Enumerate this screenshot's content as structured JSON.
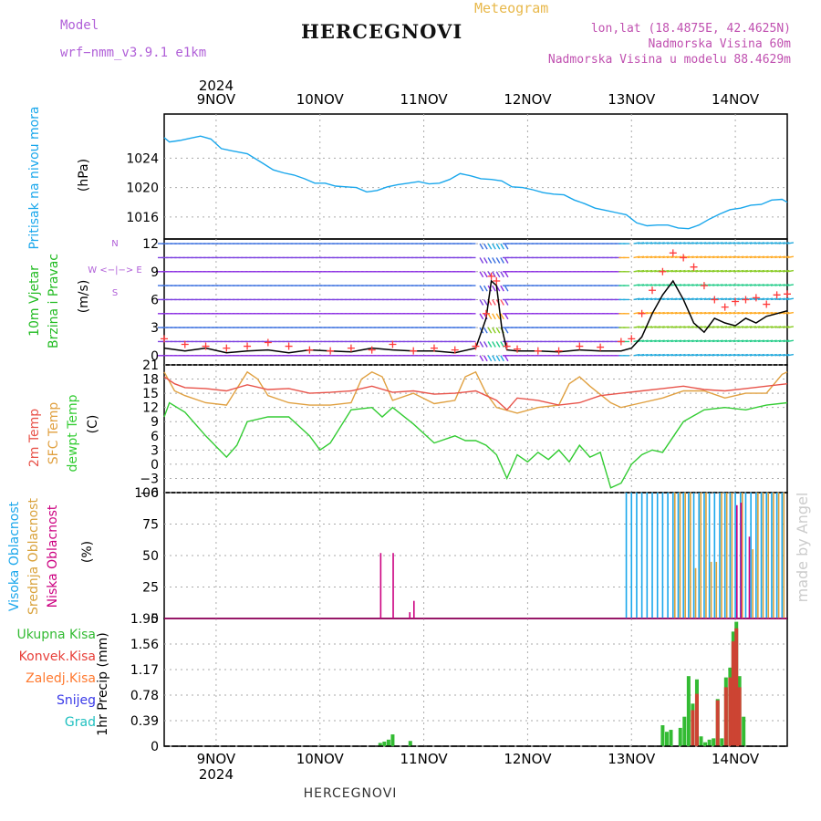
{
  "header": {
    "model_label": "Model",
    "model_value": "wrf−nmm_v3.9.1  e1km",
    "meteogram_label": "Meteogram",
    "station": "HERCEGNOVI",
    "coords": "lon,lat (18.4875E, 42.4625N)",
    "elevation": "Nadmorska Visina 60m",
    "model_elevation": "Nadmorska Visina u modelu 88.4629m"
  },
  "footer": {
    "station": "HERCEGNOVI",
    "watermark": "made by Angel"
  },
  "colors": {
    "pressure": "#1aa7ec",
    "wind_black": "#000000",
    "wind_red": "#ff3b3b",
    "temp_2m": "#e8534a",
    "temp_sfc": "#e0a040",
    "dewpoint": "#33cc33",
    "cloud_high": "#1aa7ec",
    "cloud_mid": "#d9a23c",
    "cloud_low": "#cc0080",
    "precip_total": "#33bb33",
    "precip_conv": "#cc4433",
    "label_pressure": "#1aa7ec",
    "label_wind": "#22bb22",
    "label_wind2": "#b05fd8"
  },
  "chart_data": [
    {
      "type": "line",
      "panel": "pressure",
      "ylabel": "Pritisak na nivou mora",
      "unit": "(hPa)",
      "yticks": [
        "1016",
        "1020",
        "1024"
      ],
      "ylim": [
        1013,
        1030
      ],
      "x_day_labels": [
        "9NOV",
        "10NOV",
        "11NOV",
        "12NOV",
        "13NOV",
        "14NOV"
      ],
      "x_year_label": "2024",
      "x_start_day": 8.5,
      "x_end_day": 14.5,
      "series": [
        {
          "x": [
            8.5,
            8.55,
            8.65,
            8.75,
            8.85,
            8.95,
            9.05,
            9.15,
            9.3,
            9.45,
            9.55,
            9.65,
            9.75,
            9.85,
            9.95,
            10.05,
            10.15,
            10.25,
            10.35,
            10.45,
            10.55,
            10.65,
            10.75,
            10.85,
            10.95,
            11.05,
            11.15,
            11.25,
            11.35,
            11.45,
            11.55,
            11.65,
            11.75,
            11.85,
            11.95,
            12.05,
            12.15,
            12.25,
            12.35,
            12.45,
            12.55,
            12.65,
            12.75,
            12.85,
            12.95,
            13.05,
            13.15,
            13.25,
            13.35,
            13.45,
            13.55,
            13.65,
            13.75,
            13.85,
            13.95,
            14.05,
            14.15,
            14.25,
            14.35,
            14.45,
            14.5
          ],
          "y": [
            1026.8,
            1026.2,
            1026.4,
            1026.7,
            1027.0,
            1026.6,
            1025.3,
            1025.0,
            1024.6,
            1023.3,
            1022.4,
            1022.0,
            1021.7,
            1021.2,
            1020.6,
            1020.6,
            1020.2,
            1020.1,
            1020.0,
            1019.4,
            1019.6,
            1020.1,
            1020.4,
            1020.6,
            1020.8,
            1020.5,
            1020.6,
            1021.1,
            1021.9,
            1021.6,
            1021.2,
            1021.1,
            1020.9,
            1020.1,
            1020.0,
            1019.7,
            1019.3,
            1019.1,
            1019.0,
            1018.3,
            1017.8,
            1017.2,
            1016.9,
            1016.6,
            1016.3,
            1015.2,
            1014.8,
            1014.9,
            1014.9,
            1014.5,
            1014.4,
            1014.9,
            1015.7,
            1016.4,
            1017.0,
            1017.2,
            1017.6,
            1017.7,
            1018.3,
            1018.4,
            1018.0
          ]
        }
      ]
    },
    {
      "type": "line",
      "panel": "wind",
      "ylabel": "10m Vjetar",
      "ylabel2": "Brzina i Pravac",
      "unit": "(m/s)",
      "compass": "W <−|−> E",
      "compass_vertical": "N",
      "compass_vertical_bottom": "S",
      "yticks": [
        "0",
        "3",
        "6",
        "9",
        "12"
      ],
      "ylim": [
        -1,
        12.5
      ],
      "series": [
        {
          "name": "speed",
          "x": [
            8.5,
            8.7,
            8.9,
            9.1,
            9.3,
            9.5,
            9.7,
            9.9,
            10.1,
            10.3,
            10.5,
            10.7,
            10.9,
            11.1,
            11.3,
            11.5,
            11.6,
            11.65,
            11.7,
            11.75,
            11.8,
            11.9,
            12.1,
            12.3,
            12.5,
            12.7,
            12.9,
            13.0,
            13.1,
            13.2,
            13.3,
            13.4,
            13.5,
            13.6,
            13.7,
            13.8,
            13.9,
            14.0,
            14.1,
            14.2,
            14.3,
            14.4,
            14.5
          ],
          "y": [
            0.8,
            0.5,
            0.8,
            0.3,
            0.5,
            0.6,
            0.3,
            0.6,
            0.5,
            0.4,
            0.8,
            0.6,
            0.5,
            0.5,
            0.3,
            0.8,
            4.0,
            8.0,
            7.5,
            3.0,
            0.6,
            0.5,
            0.5,
            0.4,
            0.6,
            0.5,
            0.5,
            0.8,
            2.0,
            4.5,
            6.5,
            8.0,
            6.0,
            3.5,
            2.5,
            4.0,
            3.5,
            3.2,
            4.0,
            3.5,
            4.2,
            4.5,
            4.8
          ]
        },
        {
          "name": "gust",
          "x": [
            8.5,
            8.7,
            8.9,
            9.1,
            9.3,
            9.5,
            9.7,
            9.9,
            10.1,
            10.3,
            10.5,
            10.7,
            10.9,
            11.1,
            11.3,
            11.5,
            11.6,
            11.65,
            11.7,
            11.8,
            11.9,
            12.1,
            12.3,
            12.5,
            12.7,
            12.9,
            13.0,
            13.1,
            13.2,
            13.3,
            13.4,
            13.5,
            13.6,
            13.7,
            13.8,
            13.9,
            14.0,
            14.1,
            14.2,
            14.3,
            14.4,
            14.5
          ],
          "y": [
            1.8,
            1.2,
            1.0,
            0.8,
            1.0,
            1.4,
            1.0,
            0.6,
            0.5,
            0.8,
            0.6,
            1.2,
            0.5,
            0.8,
            0.6,
            1.0,
            4.5,
            8.5,
            8.0,
            1.0,
            0.7,
            0.5,
            0.5,
            1.0,
            0.9,
            1.5,
            1.8,
            4.5,
            7.0,
            9.0,
            11.0,
            10.5,
            9.5,
            7.5,
            6.0,
            5.2,
            5.8,
            6.0,
            6.2,
            5.5,
            6.5,
            6.6
          ]
        }
      ]
    },
    {
      "type": "line",
      "panel": "temperature",
      "ylabel": "2m Temp",
      "ylabel2": "SFC Temp",
      "ylabel3": "dewpt Temp",
      "unit": "(C)",
      "yticks": [
        "−6",
        "−3",
        "0",
        "3",
        "6",
        "9",
        "12",
        "15",
        "18",
        "21"
      ],
      "ylim": [
        -6,
        21
      ],
      "series": [
        {
          "name": "2m Temp",
          "x": [
            8.5,
            8.6,
            8.7,
            8.9,
            9.1,
            9.3,
            9.5,
            9.7,
            9.9,
            10.1,
            10.3,
            10.5,
            10.7,
            10.9,
            11.1,
            11.3,
            11.5,
            11.7,
            11.8,
            11.9,
            12.1,
            12.3,
            12.5,
            12.7,
            12.9,
            13.1,
            13.3,
            13.5,
            13.7,
            13.9,
            14.1,
            14.3,
            14.5
          ],
          "y": [
            18.5,
            17.0,
            16.2,
            16.0,
            15.5,
            16.8,
            15.8,
            16.0,
            15.0,
            15.2,
            15.5,
            16.5,
            15.2,
            15.5,
            14.8,
            15.0,
            15.5,
            13.5,
            11.5,
            14.0,
            13.5,
            12.5,
            13.0,
            14.5,
            15.0,
            15.5,
            16.0,
            16.5,
            15.8,
            15.5,
            16.0,
            16.5,
            17.0
          ]
        },
        {
          "name": "SFC Temp",
          "x": [
            8.5,
            8.6,
            8.7,
            8.9,
            9.1,
            9.2,
            9.3,
            9.4,
            9.5,
            9.7,
            9.9,
            10.1,
            10.3,
            10.4,
            10.5,
            10.6,
            10.7,
            10.9,
            11.1,
            11.3,
            11.4,
            11.5,
            11.6,
            11.7,
            11.9,
            12.1,
            12.3,
            12.4,
            12.5,
            12.6,
            12.8,
            12.9,
            13.1,
            13.3,
            13.5,
            13.7,
            13.9,
            14.1,
            14.3,
            14.45,
            14.5
          ],
          "y": [
            19.5,
            15.5,
            14.5,
            13.0,
            12.5,
            16.0,
            19.5,
            18.0,
            14.5,
            13.0,
            12.5,
            12.5,
            13.0,
            18.0,
            19.5,
            18.5,
            13.5,
            15.0,
            12.8,
            13.5,
            18.5,
            19.5,
            15.0,
            12.0,
            10.8,
            12.0,
            12.5,
            17.0,
            18.5,
            16.5,
            13.0,
            12.0,
            13.0,
            14.0,
            15.5,
            15.5,
            14.0,
            15.0,
            15.0,
            19.0,
            19.5
          ]
        },
        {
          "name": "dewpt Temp",
          "x": [
            8.5,
            8.55,
            8.7,
            8.9,
            9.1,
            9.2,
            9.3,
            9.5,
            9.7,
            9.8,
            9.9,
            10.0,
            10.1,
            10.3,
            10.5,
            10.6,
            10.7,
            10.9,
            11.1,
            11.3,
            11.4,
            11.5,
            11.6,
            11.7,
            11.8,
            11.9,
            12.0,
            12.1,
            12.2,
            12.3,
            12.4,
            12.5,
            12.6,
            12.7,
            12.8,
            12.9,
            13.0,
            13.1,
            13.2,
            13.3,
            13.5,
            13.7,
            13.9,
            14.1,
            14.3,
            14.5
          ],
          "y": [
            10.0,
            13.0,
            11.0,
            6.0,
            1.5,
            4.0,
            9.0,
            10.0,
            10.0,
            8.0,
            6.0,
            3.0,
            4.5,
            11.5,
            12.0,
            10.0,
            12.0,
            8.5,
            4.5,
            6.0,
            5.0,
            5.0,
            4.0,
            2.0,
            -3.0,
            2.0,
            0.5,
            2.5,
            1.0,
            3.0,
            0.5,
            4.0,
            1.5,
            2.5,
            -5.0,
            -4.0,
            0.0,
            2.0,
            3.0,
            2.5,
            9.0,
            11.5,
            12.0,
            11.5,
            12.5,
            13.0
          ]
        }
      ]
    },
    {
      "type": "bar",
      "panel": "clouds",
      "ylabel": "Visoka Oblacnost",
      "ylabel2": "Srednja Oblacnost",
      "ylabel3": "Niska Oblacnost",
      "unit": "(%)",
      "yticks": [
        "0",
        "25",
        "50",
        "75",
        "100"
      ],
      "ylim": [
        0,
        100
      ],
      "series": [
        {
          "name": "Niska Oblacnost",
          "x": [
            10.55,
            10.67,
            10.83,
            10.87,
            13.98,
            14.02,
            14.1
          ],
          "y": [
            52,
            52,
            5,
            14,
            90,
            92,
            65
          ]
        },
        {
          "name": "Srednja Oblacnost",
          "x": [
            13.4,
            13.45,
            13.5,
            13.55,
            13.6,
            13.65,
            13.7,
            13.75,
            13.8,
            13.85,
            13.9,
            13.95,
            14.05,
            14.15,
            14.2,
            14.25,
            14.3,
            14.35,
            14.4,
            14.45
          ],
          "y": [
            100,
            100,
            100,
            100,
            40,
            100,
            100,
            45,
            45,
            100,
            100,
            100,
            100,
            55,
            100,
            100,
            100,
            100,
            100,
            100
          ]
        },
        {
          "name": "Visoka Oblacnost",
          "x": [
            12.95,
            13.0,
            13.05,
            13.1,
            13.15,
            13.2,
            13.25,
            13.3,
            13.35,
            13.4,
            13.45,
            13.5,
            13.55,
            13.6,
            13.65,
            13.7,
            13.75,
            13.8,
            13.85,
            13.9,
            13.95,
            14.0,
            14.05,
            14.1,
            14.15,
            14.2,
            14.25,
            14.3,
            14.35,
            14.4,
            14.45
          ],
          "y": [
            100,
            100,
            100,
            100,
            100,
            100,
            100,
            100,
            100,
            100,
            100,
            100,
            100,
            100,
            100,
            100,
            100,
            100,
            100,
            100,
            100,
            100,
            100,
            100,
            100,
            100,
            100,
            100,
            100,
            100,
            100
          ]
        }
      ]
    },
    {
      "type": "bar",
      "panel": "precip",
      "ylabel": "1hr Precip (mm)",
      "legend": [
        "Ukupna Kisa",
        "Konvek.Kisa",
        "Zaledj.Kisa",
        "Snijeg",
        "Grad"
      ],
      "yticks": [
        "0",
        "0.39",
        "0.78",
        "1.17",
        "1.56",
        "1.95"
      ],
      "ylim": [
        0,
        1.95
      ],
      "series": [
        {
          "name": "Ukupna Kisa",
          "x": [
            10.58,
            10.62,
            10.66,
            10.7,
            10.87,
            13.3,
            13.34,
            13.38,
            13.47,
            13.51,
            13.55,
            13.59,
            13.63,
            13.67,
            13.71,
            13.75,
            13.79,
            13.83,
            13.87,
            13.91,
            13.95,
            13.98,
            14.01,
            14.04,
            14.08
          ],
          "y": [
            0.05,
            0.07,
            0.1,
            0.18,
            0.08,
            0.32,
            0.22,
            0.25,
            0.28,
            0.45,
            1.07,
            0.65,
            1.02,
            0.15,
            0.06,
            0.1,
            0.12,
            0.72,
            0.12,
            1.05,
            1.2,
            1.75,
            1.9,
            1.07,
            0.45
          ]
        },
        {
          "name": "Konvek.Kisa",
          "x": [
            13.59,
            13.63,
            13.83,
            13.91,
            13.95,
            13.98,
            14.01,
            14.04
          ],
          "y": [
            0.55,
            0.8,
            0.7,
            0.9,
            1.05,
            1.6,
            1.8,
            0.9
          ]
        }
      ]
    }
  ]
}
